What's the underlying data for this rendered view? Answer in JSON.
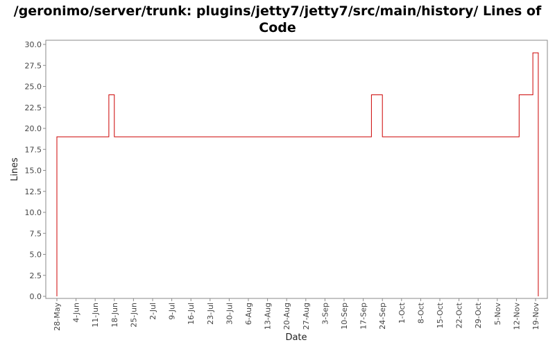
{
  "chart_data": {
    "type": "line",
    "title_line1": "/geronimo/server/trunk: plugins/jetty7/jetty7/src/main/history/ Lines of",
    "title_line2": "Code",
    "xlabel": "Date",
    "ylabel": "Lines",
    "ylim": [
      0,
      30
    ],
    "yticks": [
      "0.0",
      "2.5",
      "5.0",
      "7.5",
      "10.0",
      "12.5",
      "15.0",
      "17.5",
      "20.0",
      "22.5",
      "25.0",
      "27.5",
      "30.0"
    ],
    "xticks": [
      "28-May",
      "4-Jun",
      "11-Jun",
      "18-Jun",
      "25-Jun",
      "2-Jul",
      "9-Jul",
      "16-Jul",
      "23-Jul",
      "30-Jul",
      "6-Aug",
      "13-Aug",
      "20-Aug",
      "27-Aug",
      "3-Sep",
      "10-Sep",
      "17-Sep",
      "24-Sep",
      "1-Oct",
      "8-Oct",
      "15-Oct",
      "22-Oct",
      "29-Oct",
      "5-Nov",
      "12-Nov",
      "19-Nov"
    ],
    "grid": false,
    "line_color": "#cc0000",
    "series": [
      {
        "points": [
          {
            "x": "28-May",
            "y": 0
          },
          {
            "x": "28-May",
            "y": 19
          },
          {
            "x": "16-Jun",
            "y": 24
          },
          {
            "x": "18-Jun",
            "y": 19
          },
          {
            "x": "20-Sep",
            "y": 24
          },
          {
            "x": "24-Sep",
            "y": 19
          },
          {
            "x": "13-Nov",
            "y": 24
          },
          {
            "x": "18-Nov",
            "y": 29
          },
          {
            "x": "20-Nov",
            "y": 0
          }
        ]
      }
    ]
  }
}
